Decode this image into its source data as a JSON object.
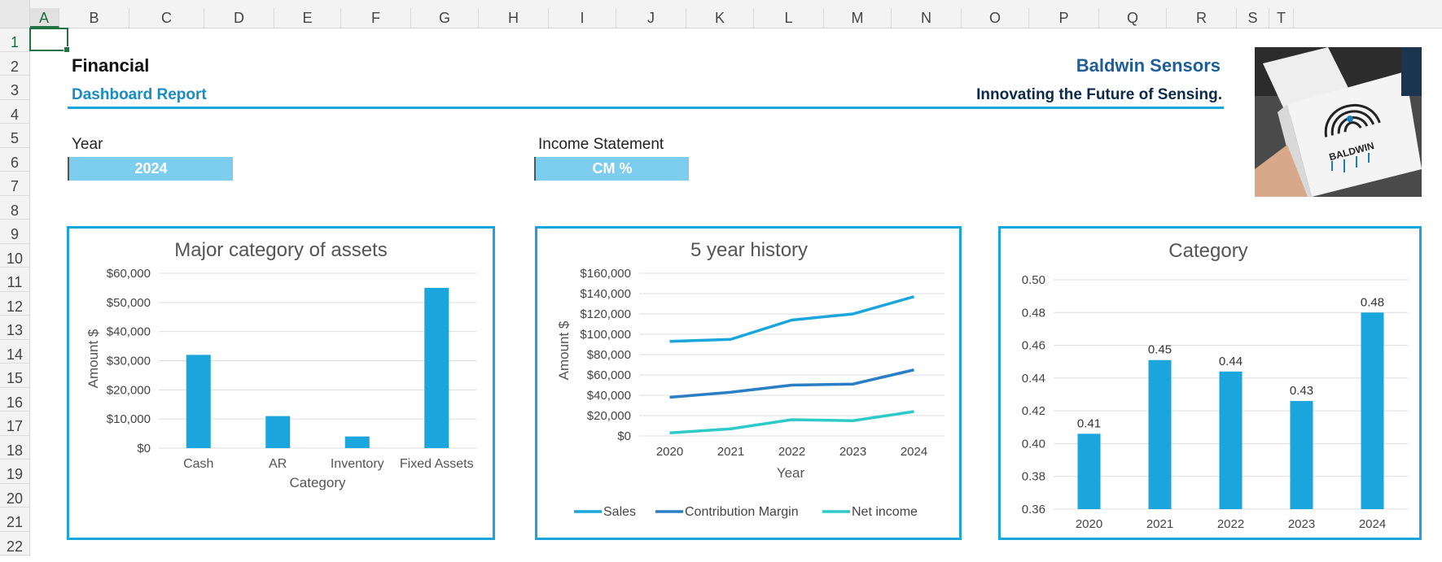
{
  "sheet": {
    "columns": [
      "A",
      "B",
      "C",
      "D",
      "E",
      "F",
      "G",
      "H",
      "I",
      "J",
      "K",
      "L",
      "M",
      "N",
      "O",
      "P",
      "Q",
      "R",
      "S",
      "T"
    ],
    "rows": [
      "1",
      "2",
      "3",
      "4",
      "5",
      "6",
      "7",
      "8",
      "9",
      "10",
      "11",
      "12",
      "13",
      "14",
      "15",
      "16",
      "17",
      "18",
      "19",
      "20",
      "21",
      "22"
    ],
    "selected_column": "A",
    "selected_row": "1"
  },
  "header": {
    "title": "Financial",
    "subtitle": "Dashboard Report",
    "company": "Baldwin Sensors",
    "tagline": "Innovating the Future of Sensing.",
    "logo_text": "BALDWIN SENSORS"
  },
  "selectors": {
    "year_label": "Year",
    "year_value": "2024",
    "statement_label": "Income Statement",
    "statement_value": "CM %"
  },
  "colors": {
    "accent": "#1aa6dd",
    "sales": "#1aa6dd",
    "contribution_margin": "#2a7fc4",
    "net_income": "#2ec9c9",
    "selector_fill": "#7dcdef"
  },
  "chart_data": [
    {
      "type": "bar",
      "title": "Major category of assets",
      "xlabel": "Category",
      "ylabel": "Amount $",
      "categories": [
        "Cash",
        "AR",
        "Inventory",
        "Fixed Assets"
      ],
      "values": [
        32000,
        11000,
        4000,
        55000
      ],
      "ylim": [
        0,
        60000
      ],
      "yticks": [
        "$0",
        "$10,000",
        "$20,000",
        "$30,000",
        "$40,000",
        "$50,000",
        "$60,000"
      ],
      "grid": true
    },
    {
      "type": "line",
      "title": "5 year history",
      "xlabel": "Year",
      "ylabel": "Amount $",
      "x": [
        "2020",
        "2021",
        "2022",
        "2023",
        "2024"
      ],
      "series": [
        {
          "name": "Sales",
          "values": [
            93000,
            95000,
            114000,
            120000,
            137000
          ]
        },
        {
          "name": "Contribution Margin",
          "values": [
            38000,
            43000,
            50000,
            51000,
            65000
          ]
        },
        {
          "name": "Net income",
          "values": [
            3000,
            7000,
            16000,
            15000,
            24000
          ]
        }
      ],
      "ylim": [
        0,
        160000
      ],
      "yticks": [
        "$0",
        "$20,000",
        "$40,000",
        "$60,000",
        "$80,000",
        "$100,000",
        "$120,000",
        "$140,000",
        "$160,000"
      ],
      "legend": "bottom",
      "grid": true
    },
    {
      "type": "bar",
      "title": "Category",
      "categories": [
        "2020",
        "2021",
        "2022",
        "2023",
        "2024"
      ],
      "values": [
        0.406,
        0.451,
        0.444,
        0.426,
        0.48
      ],
      "data_labels": [
        "0.41",
        "0.45",
        "0.44",
        "0.43",
        "0.48"
      ],
      "ylim": [
        0.36,
        0.5
      ],
      "yticks": [
        "0.36",
        "0.38",
        "0.40",
        "0.42",
        "0.44",
        "0.46",
        "0.48",
        "0.50"
      ],
      "grid": true
    }
  ]
}
